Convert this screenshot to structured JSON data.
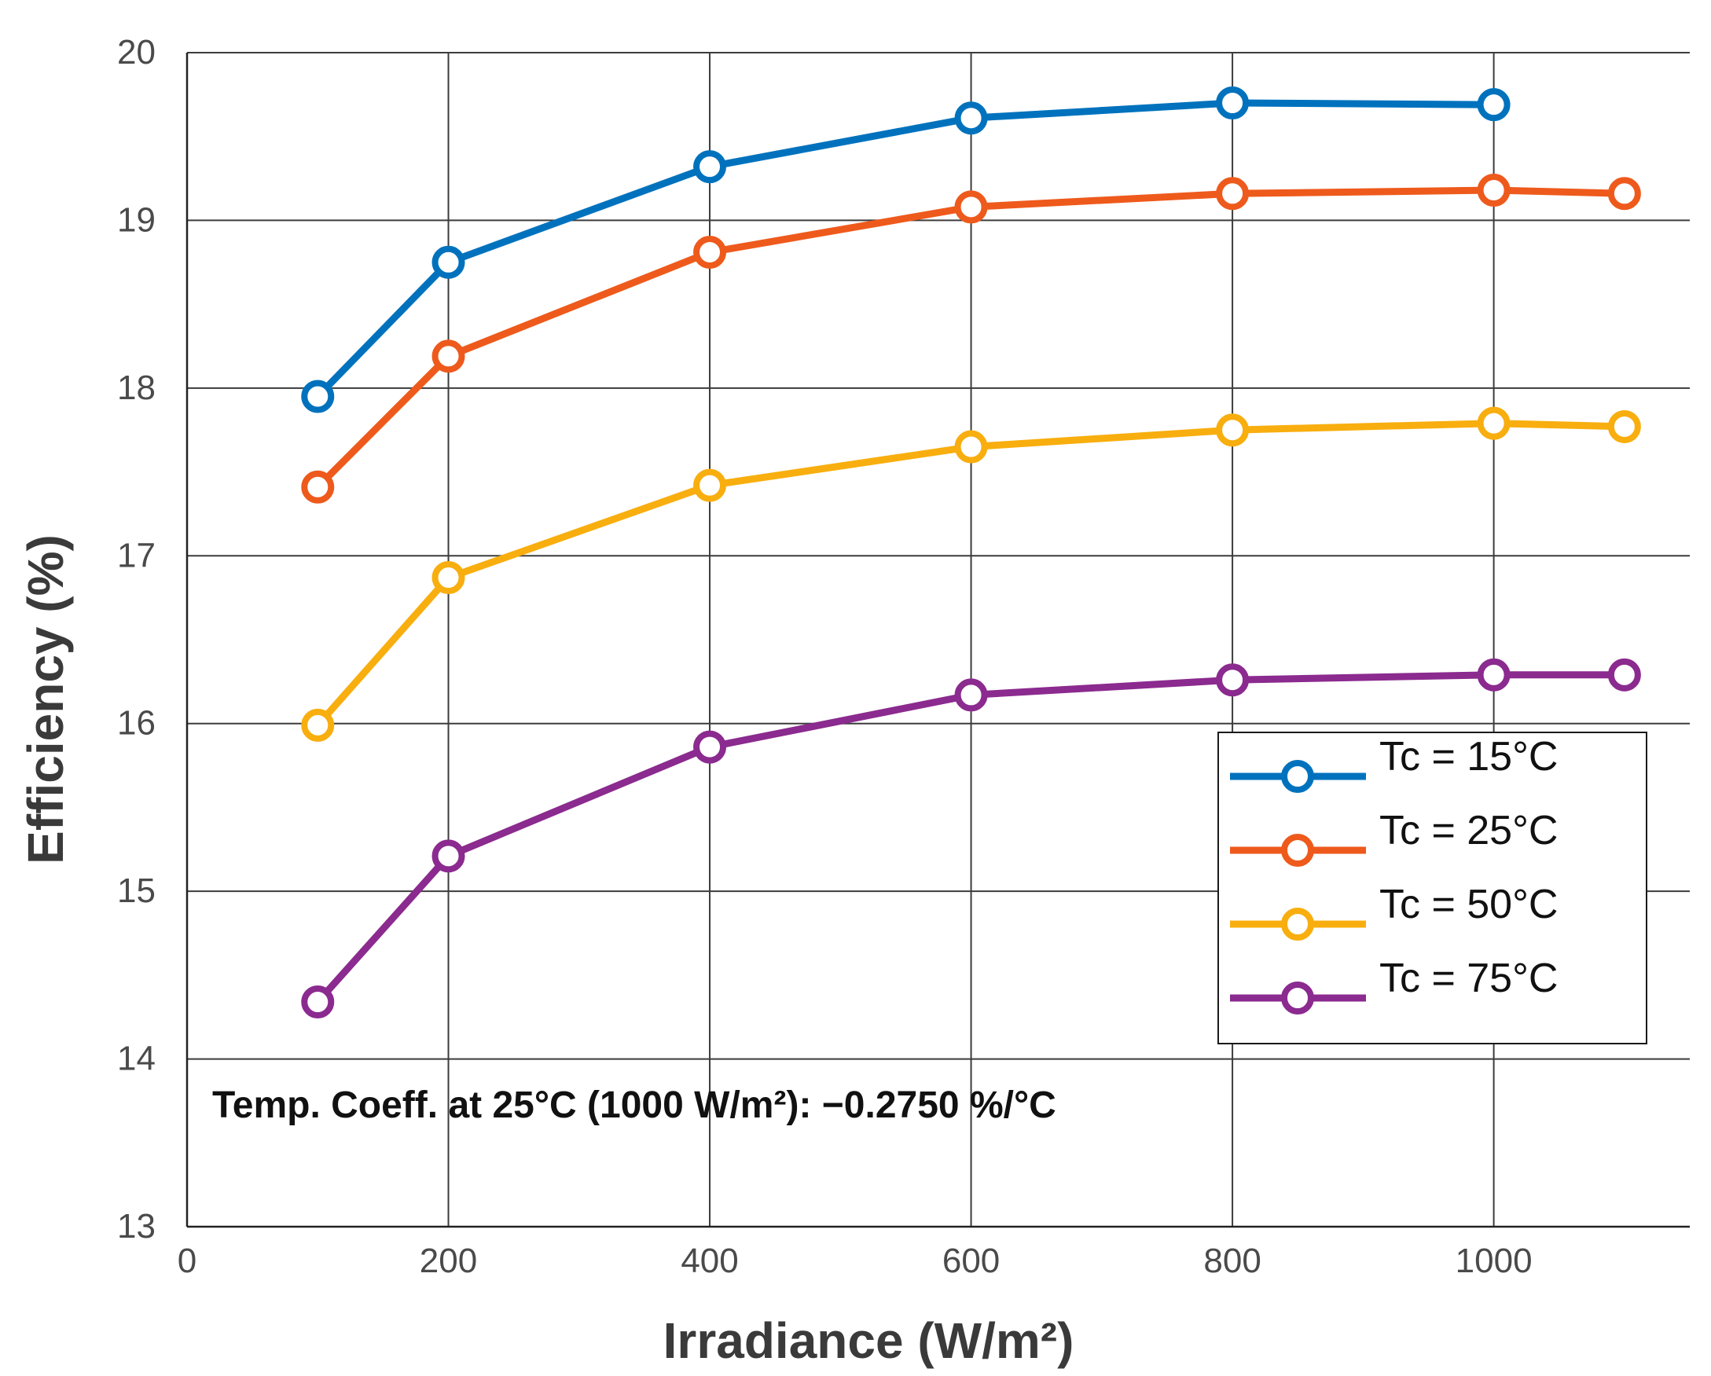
{
  "chart_data": {
    "type": "line",
    "title": "",
    "xlabel": "Irradiance (W/m²)",
    "ylabel": "Efficiency (%)",
    "xlim": [
      0,
      1150
    ],
    "ylim": [
      13,
      20
    ],
    "xticks": [
      0,
      200,
      400,
      600,
      800,
      1000
    ],
    "yticks": [
      13,
      14,
      15,
      16,
      17,
      18,
      19,
      20
    ],
    "xtick_labels": [
      "0",
      "200",
      "400",
      "600",
      "800",
      "1000"
    ],
    "ytick_labels": [
      "13",
      "14",
      "15",
      "16",
      "17",
      "18",
      "19",
      "20"
    ],
    "grid": true,
    "legend_position": "right",
    "annotation": "Temp. Coeff. at 25°C (1000 W/m²): −0.2750 %/°C",
    "series": [
      {
        "name": "Tc = 15°C",
        "color": "#0072BD",
        "x": [
          100,
          200,
          400,
          600,
          800,
          1000
        ],
        "y": [
          17.95,
          18.75,
          19.32,
          19.61,
          19.7,
          19.69
        ]
      },
      {
        "name": "Tc = 25°C",
        "color": "#EE5A1C",
        "x": [
          100,
          200,
          400,
          600,
          800,
          1000,
          1100
        ],
        "y": [
          17.41,
          18.19,
          18.81,
          19.08,
          19.16,
          19.18,
          19.16
        ]
      },
      {
        "name": "Tc = 50°C",
        "color": "#F8AE0E",
        "x": [
          100,
          200,
          400,
          600,
          800,
          1000,
          1100
        ],
        "y": [
          15.99,
          16.87,
          17.42,
          17.65,
          17.75,
          17.79,
          17.77
        ]
      },
      {
        "name": "Tc = 75°C",
        "color": "#8B2A8F",
        "x": [
          100,
          200,
          400,
          600,
          800,
          1000,
          1100
        ],
        "y": [
          14.34,
          15.21,
          15.86,
          16.17,
          16.26,
          16.29,
          16.29
        ]
      }
    ]
  }
}
